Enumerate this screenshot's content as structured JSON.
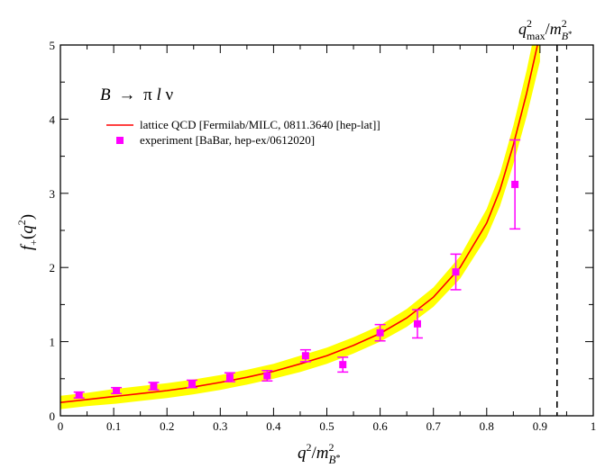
{
  "chart_data": {
    "type": "line",
    "title": "",
    "annotation": {
      "main": "B",
      "arrow": "→",
      "pi": "π",
      "l": "l",
      "nu": "ν"
    },
    "xlabel": {
      "base": "q",
      "sup": "2",
      "slash": "/",
      "m": "m",
      "sub_b": "B",
      "sub_star": "*"
    },
    "ylabel": {
      "f": "f",
      "sub": "+",
      "open": "(",
      "q": "q",
      "sup": "2",
      "close": ")"
    },
    "vline_label": {
      "q": "q",
      "sup": "2",
      "sub": "max",
      "slash": "/",
      "m": "m",
      "sub_b": "B",
      "sub_star": "*"
    },
    "xlim": [
      0,
      1
    ],
    "ylim": [
      0,
      5
    ],
    "x_major_ticks": [
      0,
      0.1,
      0.2,
      0.3,
      0.4,
      0.5,
      0.6,
      0.7,
      0.8,
      0.9,
      1
    ],
    "x_tick_labels": [
      "0",
      "0.1",
      "0.2",
      "0.3",
      "0.4",
      "0.5",
      "0.6",
      "0.7",
      "0.8",
      "0.9",
      "1"
    ],
    "y_major_ticks": [
      0,
      1,
      2,
      3,
      4,
      5
    ],
    "y_tick_labels": [
      "0",
      "1",
      "2",
      "3",
      "4",
      "5"
    ],
    "vline_x": 0.932,
    "legend_position": "top-left",
    "series": [
      {
        "name": "lattice QCD [Fermilab/MILC, 0811.3640 [hep-lat]]",
        "kind": "line",
        "color": "#ff0000",
        "band_color": "#ffff00",
        "x": [
          0,
          0.05,
          0.1,
          0.15,
          0.2,
          0.25,
          0.3,
          0.35,
          0.4,
          0.45,
          0.5,
          0.55,
          0.6,
          0.65,
          0.7,
          0.75,
          0.8,
          0.825,
          0.85,
          0.875,
          0.9
        ],
        "y": [
          0.18,
          0.22,
          0.26,
          0.3,
          0.34,
          0.39,
          0.45,
          0.52,
          0.6,
          0.7,
          0.81,
          0.95,
          1.11,
          1.32,
          1.6,
          2.0,
          2.6,
          3.05,
          3.65,
          4.35,
          5.15
        ],
        "band_halfwidth": [
          0.09,
          0.09,
          0.1,
          0.1,
          0.1,
          0.1,
          0.1,
          0.1,
          0.1,
          0.11,
          0.11,
          0.11,
          0.11,
          0.12,
          0.13,
          0.15,
          0.19,
          0.22,
          0.26,
          0.31,
          0.37
        ]
      },
      {
        "name": "experiment [BaBar, hep-ex/0612020]",
        "kind": "points",
        "color": "#ff00ff",
        "x": [
          0.035,
          0.105,
          0.175,
          0.247,
          0.318,
          0.388,
          0.46,
          0.53,
          0.6,
          0.67,
          0.742,
          0.853
        ],
        "y": [
          0.28,
          0.34,
          0.4,
          0.43,
          0.52,
          0.54,
          0.81,
          0.69,
          1.12,
          1.24,
          1.94,
          3.12
        ],
        "err": [
          0.04,
          0.04,
          0.05,
          0.05,
          0.06,
          0.07,
          0.08,
          0.1,
          0.11,
          0.19,
          0.24,
          0.6
        ]
      }
    ]
  }
}
